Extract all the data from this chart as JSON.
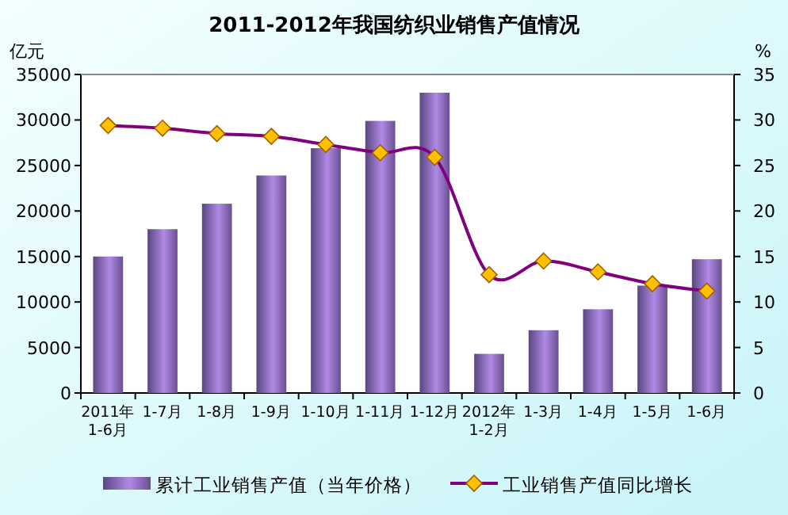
{
  "chart_data": {
    "type": "bar",
    "title": "2011-2012年我国纺织业销售产值情况",
    "ylabel": "亿元",
    "y2label": "%",
    "categories": [
      "2011年\n1-6月",
      "1-7月",
      "1-8月",
      "1-9月",
      "1-10月",
      "1-11月",
      "1-12月",
      "2012年\n1-2月",
      "1-3月",
      "1-4月",
      "1-5月",
      "1-6月"
    ],
    "series": [
      {
        "name": "累计工业销售产值（当年价格）",
        "color": "#b08ae6",
        "values": [
          15000,
          18000,
          20800,
          23900,
          26900,
          29900,
          33000,
          4300,
          6900,
          9200,
          11800,
          14700
        ]
      },
      {
        "name": "工业销售产值同比增长",
        "type": "line",
        "axis": "y2",
        "color": "#800080",
        "marker": "diamond",
        "values": [
          29.4,
          29.1,
          28.5,
          28.2,
          27.3,
          26.4,
          25.9,
          13.0,
          14.5,
          13.3,
          12.0,
          11.2
        ]
      }
    ],
    "ylim": [
      0,
      35000
    ],
    "yticks": [
      0,
      5000,
      10000,
      15000,
      20000,
      25000,
      30000,
      35000
    ],
    "y2lim": [
      0,
      35
    ],
    "y2ticks": [
      0,
      5,
      10,
      15,
      20,
      25,
      30,
      35
    ],
    "legend": "bottom",
    "grid": false
  }
}
